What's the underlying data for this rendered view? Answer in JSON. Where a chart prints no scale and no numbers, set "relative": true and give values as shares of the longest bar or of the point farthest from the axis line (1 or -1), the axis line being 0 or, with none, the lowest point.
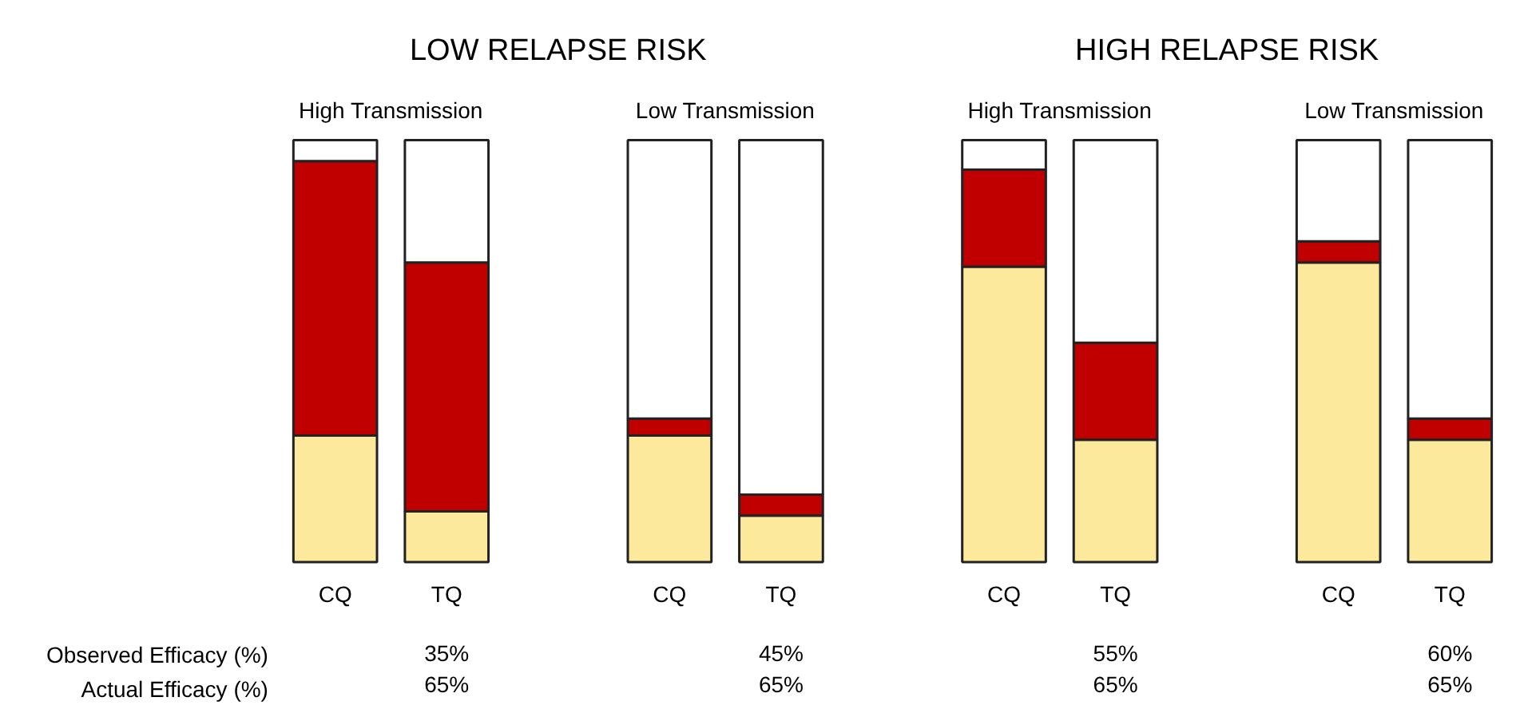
{
  "chart_data": {
    "type": "bar",
    "relative": true,
    "stacked": true,
    "categories": [
      "CQ",
      "TQ",
      "CQ",
      "TQ",
      "CQ",
      "TQ",
      "CQ",
      "TQ"
    ],
    "series": [
      {
        "color": "#fde99c",
        "values": [
          0.3,
          0.12,
          0.3,
          0.11,
          0.7,
          0.29,
          0.71,
          0.29
        ]
      },
      {
        "color": "#c00000",
        "values": [
          0.65,
          0.59,
          0.04,
          0.05,
          0.23,
          0.23,
          0.05,
          0.05
        ]
      },
      {
        "color": "#ffffff",
        "values": [
          0.05,
          0.29,
          0.66,
          0.84,
          0.07,
          0.48,
          0.24,
          0.66
        ]
      }
    ],
    "annotations": [
      "LOW RELAPSE RISK",
      "HIGH RELAPSE RISK",
      "High Transmission",
      "Low Transmission",
      "High Transmission",
      "Low Transmission",
      "Observed Efficacy (%)",
      "Actual Efficacy (%)",
      "35%",
      "65%",
      "45%",
      "65%",
      "55%",
      "65%",
      "60%",
      "65%"
    ]
  }
}
